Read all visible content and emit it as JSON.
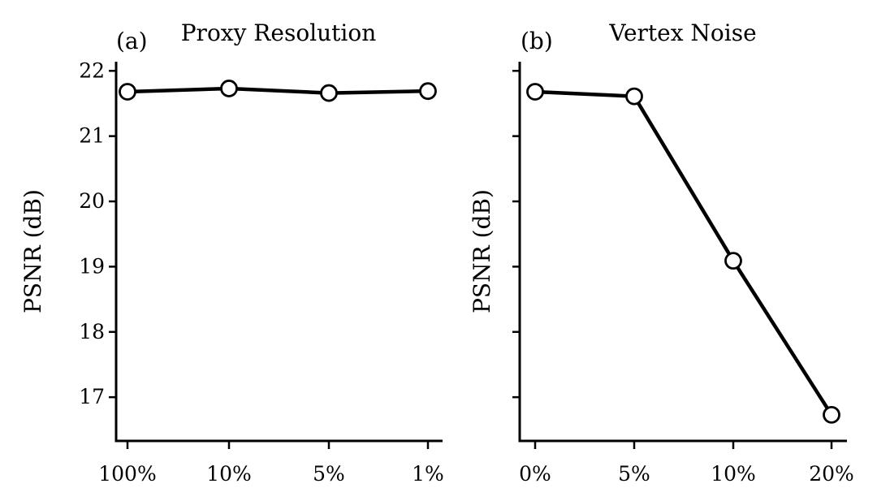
{
  "chart_data": [
    {
      "type": "line",
      "panel_label": "(a)",
      "title": "Proxy Resolution",
      "ylabel": "PSNR (dB)",
      "xlabel": "",
      "categories": [
        "100%",
        "10%",
        "5%",
        "1%"
      ],
      "values": [
        21.68,
        21.73,
        21.66,
        21.69
      ],
      "ylim": [
        16.33,
        22.14
      ],
      "yticks": [
        17,
        18,
        19,
        20,
        21,
        22
      ],
      "show_ytick_labels": true,
      "grid": false,
      "line_color": "#000000",
      "marker": "open-circle",
      "marker_fill": "#ffffff"
    },
    {
      "type": "line",
      "panel_label": "(b)",
      "title": "Vertex Noise",
      "ylabel": "PSNR (dB)",
      "xlabel": "",
      "categories": [
        "0%",
        "5%",
        "10%",
        "20%"
      ],
      "values": [
        21.68,
        21.61,
        19.09,
        16.73
      ],
      "ylim": [
        16.33,
        22.14
      ],
      "yticks": [
        17,
        18,
        19,
        20,
        21,
        22
      ],
      "show_ytick_labels": false,
      "grid": false,
      "line_color": "#000000",
      "marker": "open-circle",
      "marker_fill": "#ffffff"
    }
  ]
}
